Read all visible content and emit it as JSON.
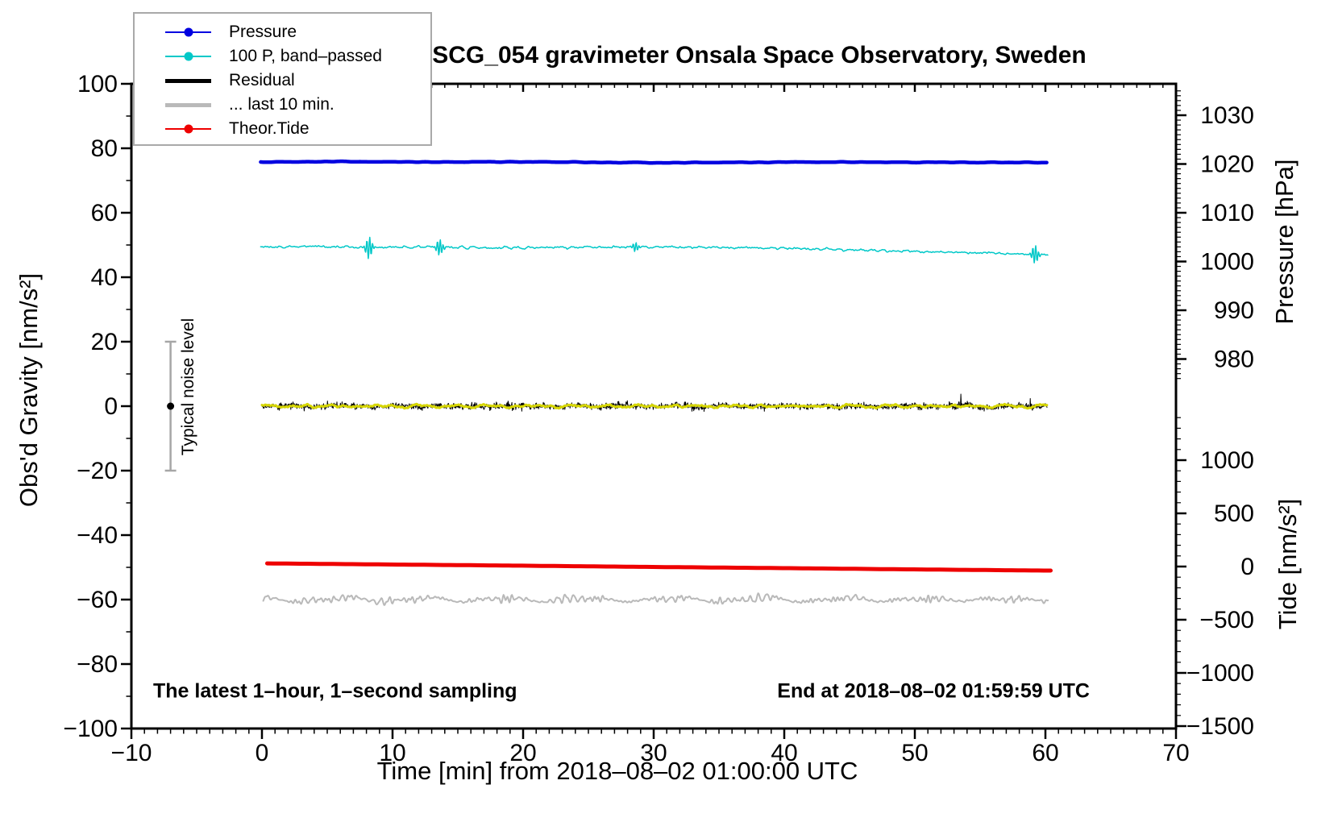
{
  "title": "SCG_054 gravimeter Onsala Space Observatory, Sweden",
  "notes": {
    "sampling": "The latest 1–hour, 1–second sampling",
    "end": "End at 2018–08–02 01:59:59 UTC",
    "noise_level": "Typical noise level"
  },
  "axes": {
    "x": {
      "label": "Time [min] from 2018–08–02 01:00:00 UTC",
      "min": -10,
      "max": 70,
      "major_ticks": [
        -10,
        0,
        10,
        20,
        30,
        40,
        50,
        60,
        70
      ],
      "minor_step": 1
    },
    "gravity": {
      "label": "Obs'd Gravity [nm/s²]",
      "min": -100,
      "max": 100,
      "major_ticks": [
        100,
        80,
        60,
        40,
        20,
        0,
        -20,
        -40,
        -60,
        -80,
        -100
      ],
      "minor_step": 10
    },
    "pressure": {
      "label": "Pressure [hPa]",
      "major_ticks": [
        1030,
        1020,
        1010,
        1000,
        990,
        980
      ],
      "minor_step": 1,
      "minor_min": 976,
      "minor_max": 1035
    },
    "tide": {
      "label": "Tide [nm/s²]",
      "major_ticks": [
        1000,
        500,
        0,
        -500,
        -1000,
        -1500
      ],
      "minor_step": 100,
      "minor_min": -1500,
      "minor_max": 1400
    }
  },
  "legend": [
    {
      "key": "pressure",
      "label": "Pressure",
      "color": "#0000e0",
      "marker": true,
      "thick": false
    },
    {
      "key": "bandpassed",
      "label": "100 P, band–passed",
      "color": "#00c8c8",
      "marker": true,
      "thick": false
    },
    {
      "key": "residual",
      "label": "Residual",
      "color": "#000000",
      "marker": false,
      "thick": true
    },
    {
      "key": "last10",
      "label": "... last 10 min.",
      "color": "#b9b9b9",
      "marker": false,
      "thick": true
    },
    {
      "key": "theortide",
      "label": "Theor.Tide",
      "color": "#ee0000",
      "marker": true,
      "thick": false
    }
  ],
  "noise_bar": {
    "x_min": -7,
    "center_value": 0,
    "half_range": 20,
    "bar_color": "#a6a6a6",
    "dot_color": "#000000"
  },
  "chart_data": {
    "type": "line",
    "title": "SCG_054 gravimeter Onsala Space Observatory, Sweden",
    "xlabel": "Time [min] from 2018–08–02 01:00:00 UTC",
    "x_data_range_min": [
      0,
      60
    ],
    "x_axis_range_min": [
      -10,
      70
    ],
    "left_axis": {
      "name": "Obs'd Gravity [nm/s²]",
      "range": [
        -100,
        100
      ]
    },
    "right_axis_pressure": {
      "name": "Pressure [hPa]",
      "labeled_range": [
        980,
        1030
      ]
    },
    "right_axis_tide": {
      "name": "Tide [nm/s²]",
      "labeled_range": [
        -1500,
        1000
      ]
    },
    "legend_position": "top-left",
    "grid": false,
    "series": [
      {
        "name": "Pressure",
        "axis": "pressure",
        "unit": "hPa",
        "color": "#0000e0",
        "linewidth": 4.5,
        "description": "nearly constant barometric pressure",
        "anchors": [
          [
            0,
            1020.4
          ],
          [
            6,
            1020.5
          ],
          [
            12,
            1020.4
          ],
          [
            20,
            1020.45
          ],
          [
            30,
            1020.25
          ],
          [
            34,
            1020.3
          ],
          [
            42,
            1020.4
          ],
          [
            50,
            1020.35
          ],
          [
            60,
            1020.3
          ]
        ],
        "noise_amp": 0.06
      },
      {
        "name": "100 P, band–passed",
        "axis": "gravity",
        "unit": "nm/s²",
        "color": "#00c8c8",
        "linewidth": 1.5,
        "description": "100 × band-passed pressure, plotted near +50 nm/s²",
        "anchors": [
          [
            0,
            49.3
          ],
          [
            4,
            49.6
          ],
          [
            8,
            49.2
          ],
          [
            12,
            49.4
          ],
          [
            18,
            49.1
          ],
          [
            24,
            49.3
          ],
          [
            30,
            49.4
          ],
          [
            36,
            49.2
          ],
          [
            40,
            49.0
          ],
          [
            44,
            48.6
          ],
          [
            48,
            48.2
          ],
          [
            52,
            47.8
          ],
          [
            56,
            47.5
          ],
          [
            60,
            46.9
          ]
        ],
        "noise_amp": 0.4,
        "spikes": [
          {
            "t": 8.2,
            "amp": 3.4
          },
          {
            "t": 13.6,
            "amp": 2.4
          },
          {
            "t": 28.6,
            "amp": 1.4
          },
          {
            "t": 59.2,
            "amp": 2.8
          }
        ]
      },
      {
        "name": "Residual",
        "axis": "gravity",
        "unit": "nm/s²",
        "color": "#000000",
        "linewidth": 1,
        "description": "1-second residual gravity noise band centred on 0",
        "mean": 0,
        "noise_amp": 1.5,
        "spike_amp": 3.5,
        "spike_prob": 0.02
      },
      {
        "name": "Residual smoothed",
        "axis": "gravity",
        "unit": "nm/s²",
        "color": "#d6d600",
        "linewidth": 3,
        "description": "smoothed residual (yellow) overlying the black band",
        "mean": 0,
        "noise_amp": 0.5,
        "period_min": 2.5
      },
      {
        "name": "... last 10 min.",
        "axis": "gravity",
        "unit": "nm/s²",
        "color": "#b9b9b9",
        "linewidth": 2,
        "description": "last 10 minutes of residual, offset to -60 nm/s²",
        "mean": -60,
        "osc_amp": 1.25,
        "osc_period_min": 0.55,
        "noise_amp": 0.6
      },
      {
        "name": "Theor.Tide",
        "axis": "tide",
        "unit": "nm/s²",
        "color": "#ee0000",
        "linewidth": 5,
        "description": "theoretical tide, slowly decreasing through the hour",
        "anchors": [
          [
            0,
            30
          ],
          [
            10,
            19
          ],
          [
            20,
            8
          ],
          [
            30,
            -4
          ],
          [
            40,
            -15
          ],
          [
            50,
            -27
          ],
          [
            60,
            -38
          ]
        ]
      }
    ],
    "noise_bar": {
      "x_min": -7,
      "center": 0,
      "half_range": 20,
      "label": "Typical noise level"
    }
  }
}
